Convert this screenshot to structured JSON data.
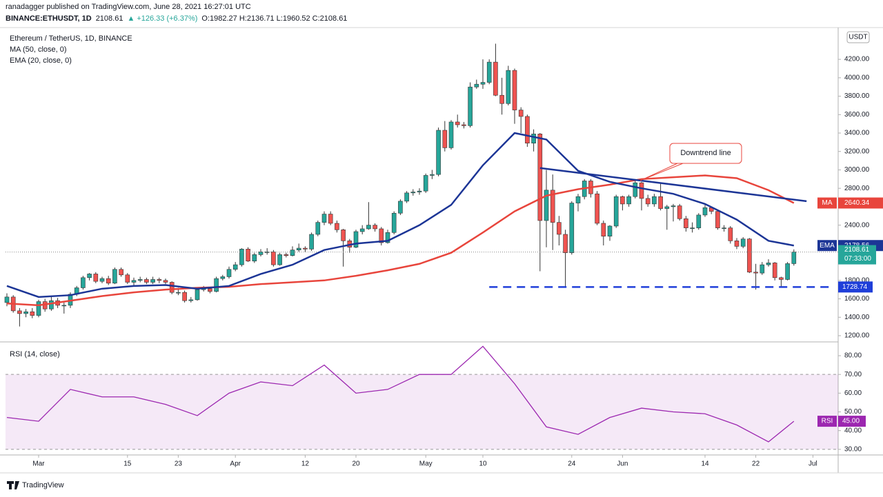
{
  "header": {
    "publisher": "ranadagger published on TradingView.com, June 28, 2021 16:27:01 UTC",
    "symbol": "BINANCE:ETHUSDT, 1D",
    "last": "2108.61",
    "change": "+126.33 (+6.37%)",
    "ohlc": "O:1982.27 H:2136.71 L:1960.52 C:2108.61"
  },
  "footer": {
    "brand": "TradingView"
  },
  "chart_data": [
    {
      "type": "candlestick",
      "title": "Ethereum / TetherUS, 1D, BINANCE",
      "currency": "USDT",
      "categories": [
        "2021-02-24",
        "2021-02-25",
        "2021-02-26",
        "2021-02-27",
        "2021-02-28",
        "2021-03-01",
        "2021-03-02",
        "2021-03-03",
        "2021-03-04",
        "2021-03-05",
        "2021-03-06",
        "2021-03-07",
        "2021-03-08",
        "2021-03-09",
        "2021-03-10",
        "2021-03-11",
        "2021-03-12",
        "2021-03-13",
        "2021-03-14",
        "2021-03-15",
        "2021-03-16",
        "2021-03-17",
        "2021-03-18",
        "2021-03-19",
        "2021-03-20",
        "2021-03-21",
        "2021-03-22",
        "2021-03-23",
        "2021-03-24",
        "2021-03-25",
        "2021-03-26",
        "2021-03-27",
        "2021-03-28",
        "2021-03-29",
        "2021-03-30",
        "2021-03-31",
        "2021-04-01",
        "2021-04-02",
        "2021-04-03",
        "2021-04-04",
        "2021-04-05",
        "2021-04-06",
        "2021-04-07",
        "2021-04-08",
        "2021-04-09",
        "2021-04-10",
        "2021-04-11",
        "2021-04-12",
        "2021-04-13",
        "2021-04-14",
        "2021-04-15",
        "2021-04-16",
        "2021-04-17",
        "2021-04-18",
        "2021-04-19",
        "2021-04-20",
        "2021-04-21",
        "2021-04-22",
        "2021-04-23",
        "2021-04-24",
        "2021-04-25",
        "2021-04-26",
        "2021-04-27",
        "2021-04-28",
        "2021-04-29",
        "2021-04-30",
        "2021-05-01",
        "2021-05-02",
        "2021-05-03",
        "2021-05-04",
        "2021-05-05",
        "2021-05-06",
        "2021-05-07",
        "2021-05-08",
        "2021-05-09",
        "2021-05-10",
        "2021-05-11",
        "2021-05-12",
        "2021-05-13",
        "2021-05-14",
        "2021-05-15",
        "2021-05-16",
        "2021-05-17",
        "2021-05-18",
        "2021-05-19",
        "2021-05-20",
        "2021-05-21",
        "2021-05-22",
        "2021-05-23",
        "2021-05-24",
        "2021-05-25",
        "2021-05-26",
        "2021-05-27",
        "2021-05-28",
        "2021-05-29",
        "2021-05-30",
        "2021-05-31",
        "2021-06-01",
        "2021-06-02",
        "2021-06-03",
        "2021-06-04",
        "2021-06-05",
        "2021-06-06",
        "2021-06-07",
        "2021-06-08",
        "2021-06-09",
        "2021-06-10",
        "2021-06-11",
        "2021-06-12",
        "2021-06-13",
        "2021-06-14",
        "2021-06-15",
        "2021-06-16",
        "2021-06-17",
        "2021-06-18",
        "2021-06-19",
        "2021-06-20",
        "2021-06-21",
        "2021-06-22",
        "2021-06-23",
        "2021-06-24",
        "2021-06-25",
        "2021-06-26",
        "2021-06-27",
        "2021-06-28"
      ],
      "open": [
        1560,
        1620,
        1470,
        1440,
        1460,
        1420,
        1570,
        1490,
        1580,
        1530,
        1530,
        1650,
        1720,
        1830,
        1870,
        1790,
        1820,
        1770,
        1920,
        1860,
        1780,
        1800,
        1810,
        1780,
        1810,
        1800,
        1780,
        1670,
        1670,
        1580,
        1590,
        1700,
        1710,
        1680,
        1820,
        1840,
        1920,
        1970,
        2140,
        2010,
        2080,
        2110,
        2110,
        1970,
        2080,
        2070,
        2130,
        2150,
        2140,
        2300,
        2430,
        2520,
        2420,
        2350,
        2230,
        2160,
        2330,
        2360,
        2400,
        2360,
        2210,
        2320,
        2530,
        2660,
        2750,
        2760,
        2770,
        2940,
        2950,
        3430,
        3240,
        3520,
        3490,
        3480,
        3900,
        3930,
        3950,
        4170,
        3810,
        3720,
        4080,
        3650,
        3580,
        3290,
        3390,
        2450,
        2780,
        2430,
        2300,
        2100,
        2640,
        2710,
        2880,
        2740,
        2420,
        2280,
        2390,
        2710,
        2630,
        2710,
        2860,
        2690,
        2630,
        2710,
        2580,
        2600,
        2610,
        2470,
        2370,
        2370,
        2510,
        2590,
        2550,
        2370,
        2370,
        2230,
        2170,
        2250,
        1890,
        1880,
        1970,
        1990,
        1830,
        1810,
        1982.27
      ],
      "high": [
        1660,
        1640,
        1500,
        1490,
        1500,
        1590,
        1600,
        1620,
        1610,
        1560,
        1670,
        1740,
        1850,
        1880,
        1890,
        1840,
        1850,
        1940,
        1940,
        1880,
        1830,
        1840,
        1830,
        1840,
        1830,
        1820,
        1790,
        1720,
        1690,
        1620,
        1720,
        1740,
        1730,
        1840,
        1860,
        1950,
        2000,
        2150,
        2160,
        2100,
        2140,
        2150,
        2130,
        2100,
        2100,
        2170,
        2200,
        2170,
        2320,
        2450,
        2550,
        2550,
        2450,
        2360,
        2250,
        2350,
        2400,
        2650,
        2420,
        2380,
        2350,
        2550,
        2680,
        2770,
        2790,
        2800,
        2960,
        3000,
        3460,
        3530,
        3540,
        3600,
        3520,
        3950,
        3980,
        4200,
        4200,
        4370,
        4000,
        4130,
        4100,
        3680,
        3600,
        3440,
        3400,
        3000,
        2950,
        2500,
        2350,
        2660,
        2740,
        2900,
        2900,
        2770,
        2450,
        2400,
        2730,
        2720,
        2730,
        2900,
        2870,
        2730,
        2740,
        2850,
        2620,
        2630,
        2630,
        2500,
        2430,
        2530,
        2620,
        2600,
        2560,
        2400,
        2390,
        2260,
        2270,
        2260,
        1980,
        2000,
        2030,
        2000,
        1840,
        2000,
        2136.71
      ],
      "low": [
        1520,
        1450,
        1300,
        1400,
        1390,
        1400,
        1460,
        1470,
        1500,
        1440,
        1500,
        1630,
        1700,
        1800,
        1770,
        1770,
        1750,
        1760,
        1840,
        1760,
        1740,
        1780,
        1760,
        1760,
        1770,
        1760,
        1650,
        1640,
        1560,
        1560,
        1580,
        1680,
        1660,
        1670,
        1800,
        1820,
        1900,
        1950,
        2000,
        1990,
        2060,
        2080,
        1950,
        1960,
        2050,
        2060,
        2110,
        2110,
        2120,
        2280,
        2400,
        2400,
        2320,
        1950,
        2100,
        2150,
        2300,
        2350,
        2330,
        2180,
        2200,
        2300,
        2510,
        2640,
        2720,
        2730,
        2750,
        2900,
        2930,
        3200,
        3220,
        3460,
        3450,
        3460,
        3880,
        3880,
        3930,
        3800,
        3600,
        3700,
        3500,
        3400,
        3250,
        3200,
        1900,
        2160,
        2130,
        2180,
        1730,
        2080,
        2550,
        2680,
        2700,
        2400,
        2180,
        2230,
        2370,
        2560,
        2600,
        2690,
        2560,
        2600,
        2600,
        2560,
        2350,
        2440,
        2450,
        2330,
        2320,
        2350,
        2490,
        2520,
        2350,
        2330,
        2200,
        2140,
        2150,
        1880,
        1700,
        1860,
        1950,
        1800,
        1720,
        1800,
        1960.52
      ],
      "close": [
        1620,
        1470,
        1440,
        1460,
        1420,
        1570,
        1490,
        1580,
        1530,
        1530,
        1650,
        1720,
        1830,
        1870,
        1790,
        1820,
        1770,
        1920,
        1860,
        1780,
        1800,
        1810,
        1780,
        1810,
        1800,
        1780,
        1670,
        1670,
        1580,
        1590,
        1700,
        1710,
        1680,
        1820,
        1840,
        1920,
        1970,
        2140,
        2010,
        2080,
        2110,
        2110,
        1970,
        2080,
        2070,
        2130,
        2150,
        2140,
        2300,
        2430,
        2520,
        2420,
        2350,
        2230,
        2160,
        2330,
        2360,
        2400,
        2360,
        2210,
        2320,
        2530,
        2660,
        2750,
        2760,
        2770,
        2940,
        2950,
        3430,
        3240,
        3520,
        3490,
        3480,
        3900,
        3930,
        3950,
        4170,
        3810,
        3720,
        4080,
        3650,
        3580,
        3290,
        3390,
        2450,
        2780,
        2430,
        2300,
        2100,
        2640,
        2710,
        2880,
        2740,
        2420,
        2280,
        2390,
        2710,
        2630,
        2710,
        2860,
        2690,
        2630,
        2710,
        2580,
        2600,
        2610,
        2470,
        2370,
        2370,
        2510,
        2590,
        2550,
        2370,
        2370,
        2230,
        2170,
        2250,
        1890,
        1880,
        1970,
        1990,
        1830,
        1810,
        1982.27,
        2108.61
      ],
      "up_color": "#26a69a",
      "down_color": "#ef5350",
      "series": [
        {
          "name": "MA (50, close, 0)",
          "short": "MA",
          "color": "#e8453c",
          "x": [
            "2021-02-24",
            "2021-03-01",
            "2021-03-06",
            "2021-03-11",
            "2021-03-16",
            "2021-03-21",
            "2021-03-26",
            "2021-03-31",
            "2021-04-05",
            "2021-04-10",
            "2021-04-15",
            "2021-04-20",
            "2021-04-25",
            "2021-04-30",
            "2021-05-05",
            "2021-05-10",
            "2021-05-15",
            "2021-05-20",
            "2021-05-25",
            "2021-05-30",
            "2021-06-04",
            "2021-06-09",
            "2021-06-14",
            "2021-06-19",
            "2021-06-24",
            "2021-06-28"
          ],
          "values": [
            1550,
            1530,
            1580,
            1630,
            1670,
            1700,
            1720,
            1730,
            1760,
            1780,
            1800,
            1850,
            1910,
            1980,
            2100,
            2320,
            2550,
            2720,
            2790,
            2840,
            2900,
            2920,
            2940,
            2910,
            2780,
            2640.34
          ]
        },
        {
          "name": "EMA (20, close, 0)",
          "short": "EMA",
          "color": "#1c3596",
          "x": [
            "2021-02-24",
            "2021-03-01",
            "2021-03-06",
            "2021-03-11",
            "2021-03-16",
            "2021-03-21",
            "2021-03-26",
            "2021-03-31",
            "2021-04-05",
            "2021-04-10",
            "2021-04-15",
            "2021-04-20",
            "2021-04-25",
            "2021-04-30",
            "2021-05-05",
            "2021-05-10",
            "2021-05-15",
            "2021-05-20",
            "2021-05-25",
            "2021-05-30",
            "2021-06-04",
            "2021-06-09",
            "2021-06-14",
            "2021-06-19",
            "2021-06-24",
            "2021-06-28"
          ],
          "values": [
            1740,
            1620,
            1640,
            1710,
            1740,
            1750,
            1710,
            1740,
            1870,
            1970,
            2130,
            2200,
            2230,
            2400,
            2620,
            3050,
            3400,
            3330,
            2990,
            2870,
            2800,
            2740,
            2630,
            2460,
            2230,
            2178.56
          ]
        }
      ],
      "trendline": {
        "label": "Downtrend line",
        "color": "#1c3596",
        "x": [
          "2021-05-19",
          "2021-06-30"
        ],
        "values": [
          3020,
          2660
        ]
      },
      "support": {
        "value": 1728.74,
        "color": "#1f3fd9",
        "x": [
          "2021-05-11",
          "2021-07-04"
        ]
      },
      "last_price": {
        "value": 2108.61,
        "countdown": "07:33:00"
      },
      "ylim": [
        1140,
        4530
      ],
      "yticks": [
        {
          "value": 1200,
          "label": "1200.00"
        },
        {
          "value": 1400,
          "label": "1400.00"
        },
        {
          "value": 1600,
          "label": "1600.00"
        },
        {
          "value": 1800,
          "label": "1800.00"
        },
        {
          "value": 2000,
          "label": "2000.00"
        },
        {
          "value": 2200,
          "label": "2200.00"
        },
        {
          "value": 2400,
          "label": "2400.00"
        },
        {
          "value": 2600,
          "label": "2600.00"
        },
        {
          "value": 2800,
          "label": "2800.00"
        },
        {
          "value": 3000,
          "label": "3000.00"
        },
        {
          "value": 3200,
          "label": "3200.00"
        },
        {
          "value": 3400,
          "label": "3400.00"
        },
        {
          "value": 3600,
          "label": "3600.00"
        },
        {
          "value": 3800,
          "label": "3800.00"
        },
        {
          "value": 4000,
          "label": "4000.00"
        },
        {
          "value": 4200,
          "label": "4200.00"
        }
      ],
      "xticks": [
        {
          "value": "2021-03-01",
          "label": "Mar"
        },
        {
          "value": "2021-03-15",
          "label": "15"
        },
        {
          "value": "2021-03-23",
          "label": "23"
        },
        {
          "value": "2021-04-01",
          "label": "Apr"
        },
        {
          "value": "2021-04-12",
          "label": "12"
        },
        {
          "value": "2021-04-20",
          "label": "20"
        },
        {
          "value": "2021-05-01",
          "label": "May"
        },
        {
          "value": "2021-05-10",
          "label": "10"
        },
        {
          "value": "2021-05-24",
          "label": "24"
        },
        {
          "value": "2021-06-01",
          "label": "Jun"
        },
        {
          "value": "2021-06-14",
          "label": "14"
        },
        {
          "value": "2021-06-22",
          "label": "22"
        },
        {
          "value": "2021-07-01",
          "label": "Jul"
        }
      ]
    },
    {
      "type": "line",
      "title": "RSI (14, close)",
      "series": [
        {
          "name": "RSI",
          "color": "#9c27b0",
          "x": [
            "2021-02-24",
            "2021-03-01",
            "2021-03-06",
            "2021-03-11",
            "2021-03-16",
            "2021-03-21",
            "2021-03-26",
            "2021-03-31",
            "2021-04-05",
            "2021-04-10",
            "2021-04-15",
            "2021-04-20",
            "2021-04-25",
            "2021-04-30",
            "2021-05-05",
            "2021-05-10",
            "2021-05-15",
            "2021-05-20",
            "2021-05-25",
            "2021-05-30",
            "2021-06-04",
            "2021-06-09",
            "2021-06-14",
            "2021-06-19",
            "2021-06-24",
            "2021-06-28"
          ],
          "values": [
            47,
            45,
            62,
            58,
            58,
            54,
            48,
            60,
            66,
            64,
            75,
            60,
            62,
            70,
            70,
            85,
            65,
            42,
            38,
            47,
            52,
            50,
            49,
            43,
            34,
            45
          ],
          "last_label": "45.00"
        }
      ],
      "band": {
        "range": [
          30,
          70
        ],
        "color": "#9c27b0"
      },
      "ylim": [
        27,
        87
      ],
      "yticks": [
        {
          "value": 30,
          "label": "30.00"
        },
        {
          "value": 40,
          "label": "40.00"
        },
        {
          "value": 50,
          "label": "50.00"
        },
        {
          "value": 60,
          "label": "60.00"
        },
        {
          "value": 70,
          "label": "70.00"
        },
        {
          "value": 80,
          "label": "80.00"
        }
      ]
    }
  ]
}
